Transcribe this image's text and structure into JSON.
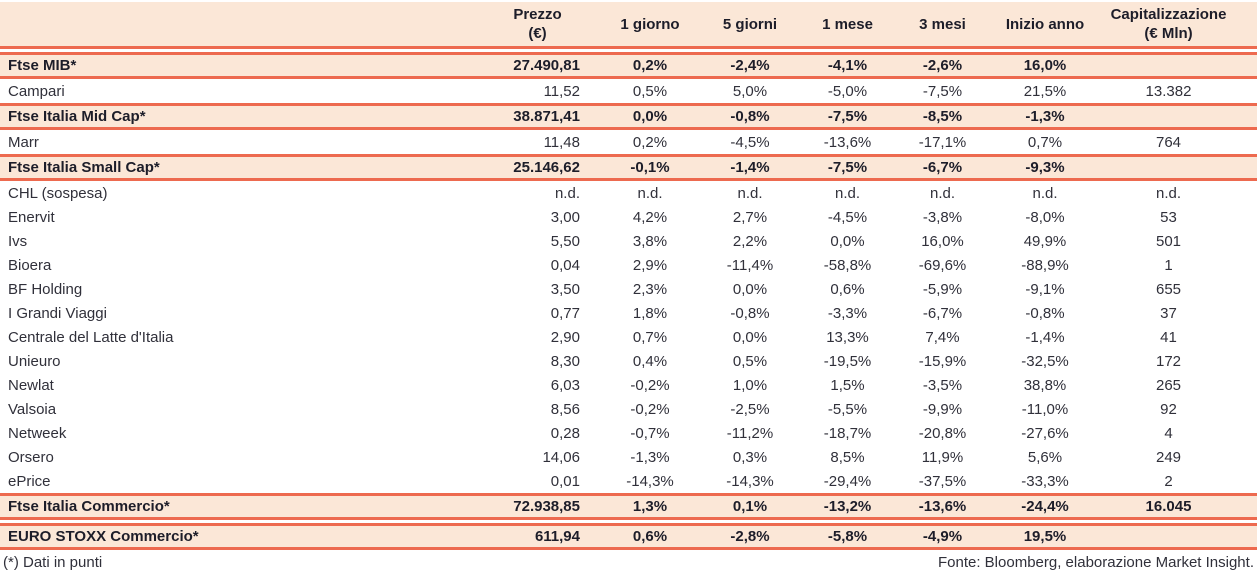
{
  "table": {
    "columns": [
      {
        "key": "name",
        "label": ""
      },
      {
        "key": "prezzo",
        "label": "Prezzo\n(€)"
      },
      {
        "key": "g1",
        "label": "1 giorno"
      },
      {
        "key": "g5",
        "label": "5 giorni"
      },
      {
        "key": "m1",
        "label": "1 mese"
      },
      {
        "key": "m3",
        "label": "3 mesi"
      },
      {
        "key": "inizio",
        "label": "Inizio anno"
      },
      {
        "key": "cap",
        "label": "Capitalizzazione\n(€ Mln)"
      }
    ],
    "rows": [
      {
        "type": "index",
        "name": "Ftse MIB*",
        "prezzo": "27.490,81",
        "g1": "0,2%",
        "g5": "-2,4%",
        "m1": "-4,1%",
        "m3": "-2,6%",
        "inizio": "16,0%",
        "cap": ""
      },
      {
        "type": "stock",
        "name": "Campari",
        "prezzo": "11,52",
        "g1": "0,5%",
        "g5": "5,0%",
        "m1": "-5,0%",
        "m3": "-7,5%",
        "inizio": "21,5%",
        "cap": "13.382"
      },
      {
        "type": "index",
        "name": "Ftse Italia Mid Cap*",
        "prezzo": "38.871,41",
        "g1": "0,0%",
        "g5": "-0,8%",
        "m1": "-7,5%",
        "m3": "-8,5%",
        "inizio": "-1,3%",
        "cap": ""
      },
      {
        "type": "stock",
        "name": "Marr",
        "prezzo": "11,48",
        "g1": "0,2%",
        "g5": "-4,5%",
        "m1": "-13,6%",
        "m3": "-17,1%",
        "inizio": "0,7%",
        "cap": "764"
      },
      {
        "type": "index",
        "name": "Ftse Italia Small Cap*",
        "prezzo": "25.146,62",
        "g1": "-0,1%",
        "g5": "-1,4%",
        "m1": "-7,5%",
        "m3": "-6,7%",
        "inizio": "-9,3%",
        "cap": ""
      },
      {
        "type": "stock",
        "name": "CHL (sospesa)",
        "prezzo": "n.d.",
        "g1": "n.d.",
        "g5": "n.d.",
        "m1": "n.d.",
        "m3": "n.d.",
        "inizio": "n.d.",
        "cap": "n.d."
      },
      {
        "type": "stock",
        "name": "Enervit",
        "prezzo": "3,00",
        "g1": "4,2%",
        "g5": "2,7%",
        "m1": "-4,5%",
        "m3": "-3,8%",
        "inizio": "-8,0%",
        "cap": "53"
      },
      {
        "type": "stock",
        "name": "Ivs",
        "prezzo": "5,50",
        "g1": "3,8%",
        "g5": "2,2%",
        "m1": "0,0%",
        "m3": "16,0%",
        "inizio": "49,9%",
        "cap": "501"
      },
      {
        "type": "stock",
        "name": "Bioera",
        "prezzo": "0,04",
        "g1": "2,9%",
        "g5": "-11,4%",
        "m1": "-58,8%",
        "m3": "-69,6%",
        "inizio": "-88,9%",
        "cap": "1"
      },
      {
        "type": "stock",
        "name": "BF Holding",
        "prezzo": "3,50",
        "g1": "2,3%",
        "g5": "0,0%",
        "m1": "0,6%",
        "m3": "-5,9%",
        "inizio": "-9,1%",
        "cap": "655"
      },
      {
        "type": "stock",
        "name": "I Grandi Viaggi",
        "prezzo": "0,77",
        "g1": "1,8%",
        "g5": "-0,8%",
        "m1": "-3,3%",
        "m3": "-6,7%",
        "inizio": "-0,8%",
        "cap": "37"
      },
      {
        "type": "stock",
        "name": "Centrale del Latte d'Italia",
        "prezzo": "2,90",
        "g1": "0,7%",
        "g5": "0,0%",
        "m1": "13,3%",
        "m3": "7,4%",
        "inizio": "-1,4%",
        "cap": "41"
      },
      {
        "type": "stock",
        "name": "Unieuro",
        "prezzo": "8,30",
        "g1": "0,4%",
        "g5": "0,5%",
        "m1": "-19,5%",
        "m3": "-15,9%",
        "inizio": "-32,5%",
        "cap": "172"
      },
      {
        "type": "stock",
        "name": "Newlat",
        "prezzo": "6,03",
        "g1": "-0,2%",
        "g5": "1,0%",
        "m1": "1,5%",
        "m3": "-3,5%",
        "inizio": "38,8%",
        "cap": "265"
      },
      {
        "type": "stock",
        "name": "Valsoia",
        "prezzo": "8,56",
        "g1": "-0,2%",
        "g5": "-2,5%",
        "m1": "-5,5%",
        "m3": "-9,9%",
        "inizio": "-11,0%",
        "cap": "92"
      },
      {
        "type": "stock",
        "name": "Netweek",
        "prezzo": "0,28",
        "g1": "-0,7%",
        "g5": "-11,2%",
        "m1": "-18,7%",
        "m3": "-20,8%",
        "inizio": "-27,6%",
        "cap": "4"
      },
      {
        "type": "stock",
        "name": "Orsero",
        "prezzo": "14,06",
        "g1": "-1,3%",
        "g5": "0,3%",
        "m1": "8,5%",
        "m3": "11,9%",
        "inizio": "5,6%",
        "cap": "249"
      },
      {
        "type": "stock",
        "name": "ePrice",
        "prezzo": "0,01",
        "g1": "-14,3%",
        "g5": "-14,3%",
        "m1": "-29,4%",
        "m3": "-37,5%",
        "inizio": "-33,3%",
        "cap": "2"
      },
      {
        "type": "index",
        "name": "Ftse Italia Commercio*",
        "prezzo": "72.938,85",
        "g1": "1,3%",
        "g5": "0,1%",
        "m1": "-13,2%",
        "m3": "-13,6%",
        "inizio": "-24,4%",
        "cap": "16.045"
      },
      {
        "type": "index",
        "gap_before": true,
        "name": "EURO STOXX Commercio*",
        "prezzo": "611,94",
        "g1": "0,6%",
        "g5": "-2,8%",
        "m1": "-5,8%",
        "m3": "-4,9%",
        "inizio": "19,5%",
        "cap": ""
      }
    ]
  },
  "footer": {
    "note": "(*) Dati in punti",
    "source": "Fonte: Bloomberg, elaborazione Market Insight."
  },
  "colors": {
    "accent": "#ed6a4f",
    "row_highlight": "#fbe7d7",
    "text": "#30303a",
    "text_bold": "#1d1d29"
  }
}
